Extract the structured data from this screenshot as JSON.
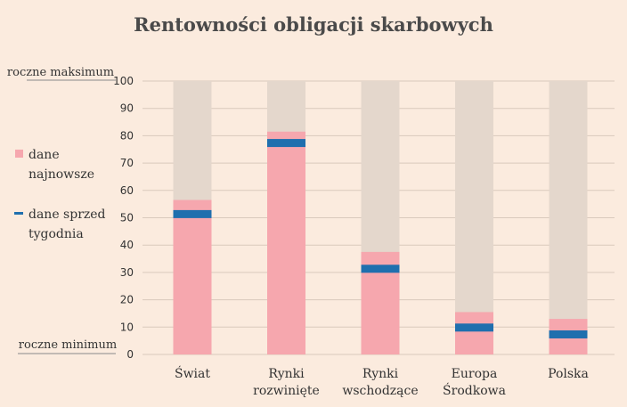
{
  "chart_data": {
    "type": "bar",
    "title": "Rentowności obligacji skarbowych",
    "ylim": [
      0,
      100
    ],
    "yticks": [
      "0",
      "10",
      "20",
      "30",
      "40",
      "50",
      "60",
      "70",
      "80",
      "90",
      "100"
    ],
    "top_label": "roczne maksimum",
    "bottom_label": "roczne minimum",
    "categories": [
      [
        "Świat"
      ],
      [
        "Rynki",
        "rozwinięte"
      ],
      [
        "Rynki",
        "wschodzące"
      ],
      [
        "Europa",
        "Środkowa"
      ],
      [
        "Polska"
      ]
    ],
    "series": [
      {
        "name": "dane najnowsze",
        "values": [
          56.5,
          81.5,
          37.5,
          15.5,
          13
        ]
      },
      {
        "name": "dane sprzed tygodnia",
        "values": [
          51.5,
          77.5,
          31.5,
          10,
          7.5
        ]
      }
    ],
    "legend": [
      {
        "lines": [
          "dane",
          "najnowsze"
        ],
        "color": "#f6a7ae",
        "marker": "square"
      },
      {
        "lines": [
          "dane sprzed",
          "tygodnia"
        ],
        "color": "#1f6fae",
        "marker": "dash"
      }
    ],
    "colors": {
      "range_background": "#e4d7cc",
      "latest": "#f6a7ae",
      "week_ago": "#1f6fae",
      "grid": "#d9c9bc"
    },
    "grid": true,
    "legend_position": "left"
  }
}
